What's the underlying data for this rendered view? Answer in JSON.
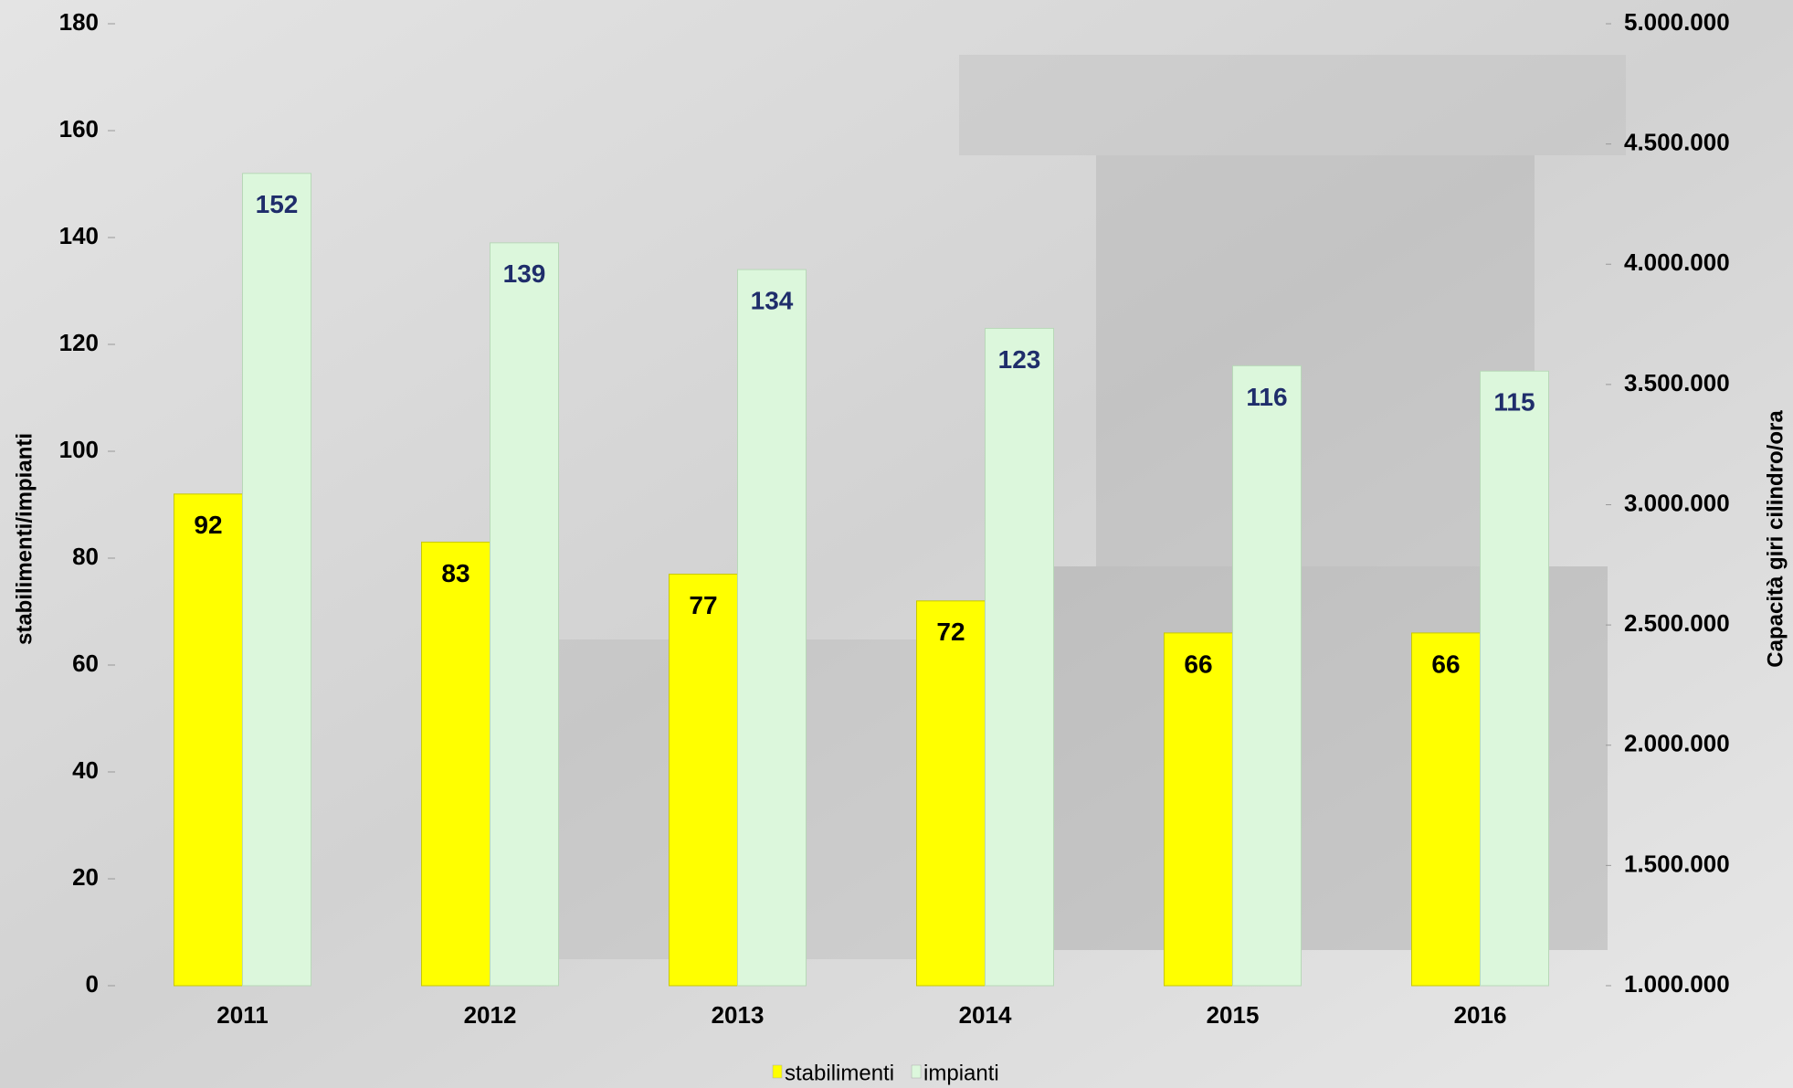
{
  "chart_data": {
    "type": "bar",
    "categories": [
      "2011",
      "2012",
      "2013",
      "2014",
      "2015",
      "2016"
    ],
    "series": [
      {
        "name": "stabilimenti",
        "color": "#ffff00",
        "values": [
          92,
          83,
          77,
          72,
          66,
          66
        ]
      },
      {
        "name": "impianti",
        "color": "#dcf7dc",
        "values": [
          152,
          139,
          134,
          123,
          116,
          115
        ]
      }
    ],
    "ylabel": "stabilimenti/impianti",
    "y2label": "Capacità giri cilindro/ora",
    "ylim": [
      0,
      180
    ],
    "yticks": [
      0,
      20,
      40,
      60,
      80,
      100,
      120,
      140,
      160,
      180
    ],
    "y2lim": [
      1000000,
      5000000
    ],
    "y2ticks": [
      {
        "value": 1000000,
        "label": "1.000.000"
      },
      {
        "value": 1500000,
        "label": "1.500.000"
      },
      {
        "value": 2000000,
        "label": "2.000.000"
      },
      {
        "value": 2500000,
        "label": "2.500.000"
      },
      {
        "value": 3000000,
        "label": "3.000.000"
      },
      {
        "value": 3500000,
        "label": "3.500.000"
      },
      {
        "value": 4000000,
        "label": "4.000.000"
      },
      {
        "value": 4500000,
        "label": "4.500.000"
      },
      {
        "value": 5000000,
        "label": "5.000.000"
      }
    ],
    "legend": "bottom"
  }
}
